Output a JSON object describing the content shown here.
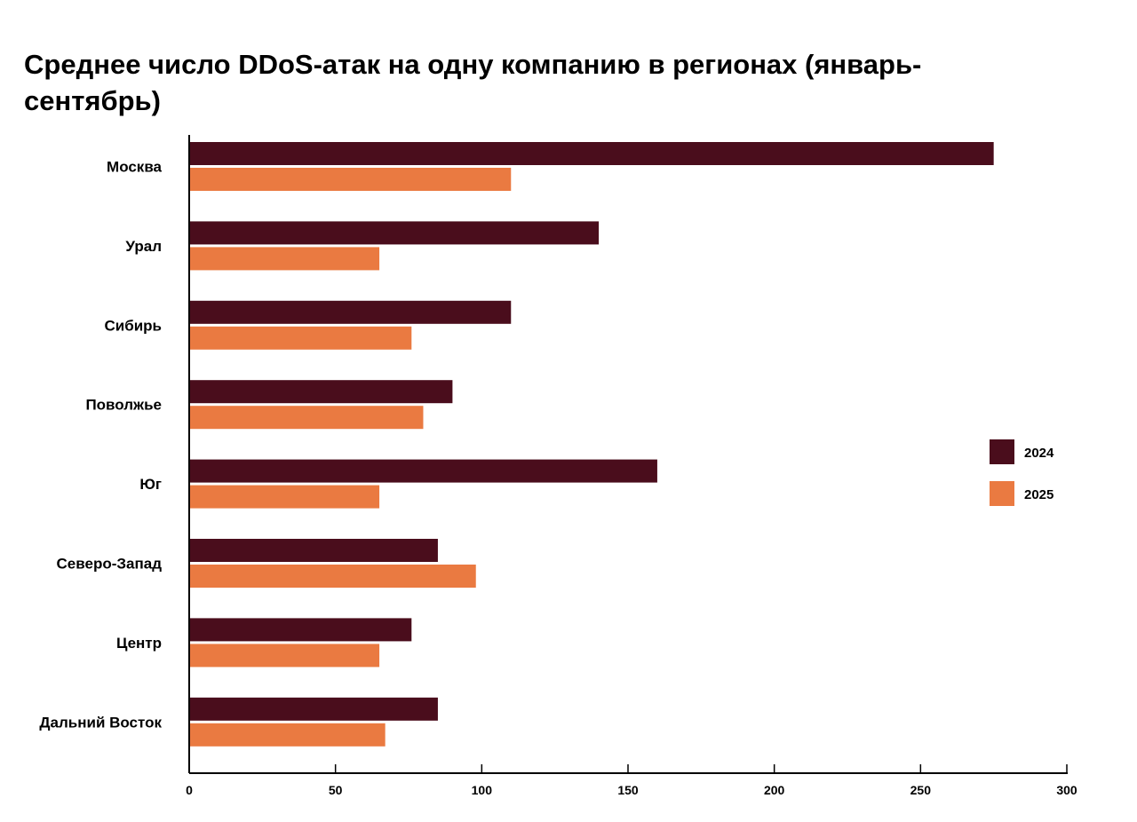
{
  "chart_data": {
    "type": "bar",
    "orientation": "horizontal",
    "title": "Среднее число DDoS-атак на одну компанию в регионах (январь-сентябрь)",
    "xlabel": "",
    "ylabel": "",
    "xlim": [
      0,
      300
    ],
    "x_ticks": [
      0,
      50,
      100,
      150,
      200,
      250,
      300
    ],
    "grid": false,
    "legend_position": "right",
    "categories": [
      "Москва",
      "Урал",
      "Сибирь",
      "Поволжье",
      "Юг",
      "Северо-Запад",
      "Центр",
      "Дальний Восток"
    ],
    "series": [
      {
        "name": "2024",
        "color": "#4a0d1c",
        "values": [
          275,
          140,
          110,
          90,
          160,
          85,
          76,
          85
        ]
      },
      {
        "name": "2025",
        "color": "#ea7a41",
        "values": [
          110,
          65,
          76,
          80,
          65,
          98,
          65,
          67
        ]
      }
    ]
  }
}
